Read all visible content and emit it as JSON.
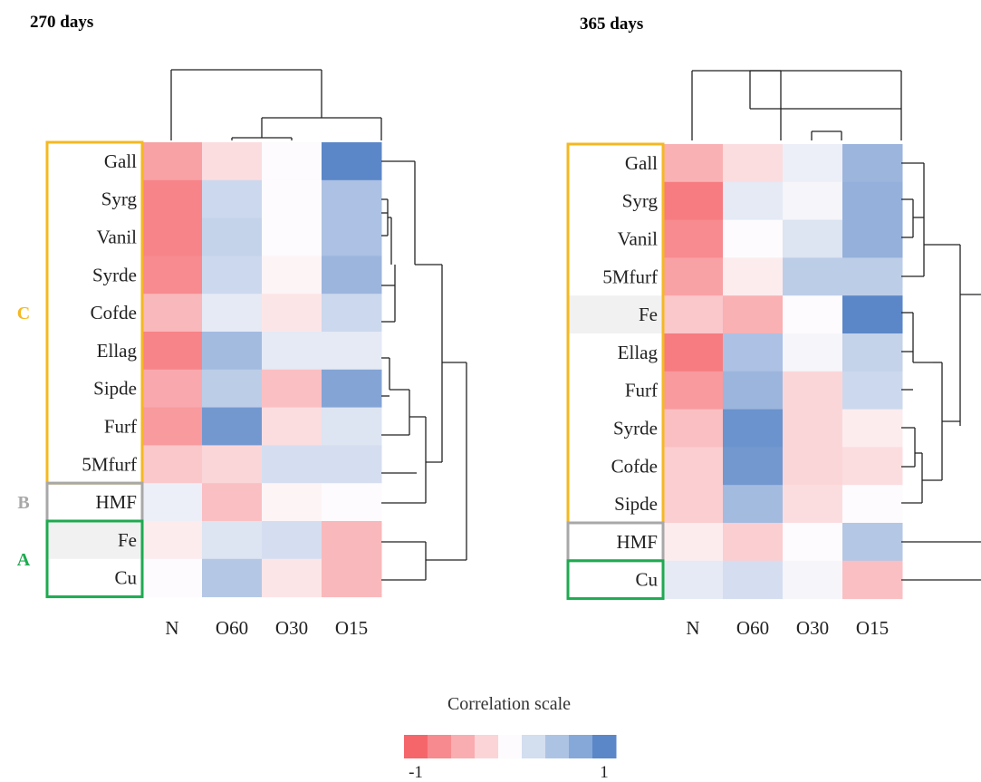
{
  "chart_data": [
    {
      "type": "heatmap",
      "title": "270 days",
      "columns": [
        "N",
        "O60",
        "O30",
        "O15"
      ],
      "rows": [
        "Gall",
        "Syrg",
        "Vanil",
        "Syrde",
        "Cofde",
        "Ellag",
        "Sipde",
        "Furf",
        "5Mfurf",
        "HMF",
        "Fe",
        "Cu"
      ],
      "values": [
        [
          -0.6,
          -0.2,
          0.0,
          1.0
        ],
        [
          -0.8,
          0.3,
          0.0,
          0.5
        ],
        [
          -0.8,
          0.35,
          0.0,
          0.5
        ],
        [
          -0.75,
          0.3,
          -0.05,
          0.6
        ],
        [
          -0.45,
          0.15,
          -0.15,
          0.3
        ],
        [
          -0.8,
          0.55,
          0.15,
          0.15
        ],
        [
          -0.55,
          0.4,
          -0.4,
          0.75
        ],
        [
          -0.65,
          0.85,
          -0.2,
          0.2
        ],
        [
          -0.35,
          -0.25,
          0.25,
          0.25
        ],
        [
          0.1,
          -0.4,
          -0.05,
          0.0
        ],
        [
          -0.1,
          0.2,
          0.25,
          -0.45
        ],
        [
          0.0,
          0.45,
          -0.15,
          -0.45
        ]
      ],
      "groups": [
        {
          "label": "C",
          "color": "#f5b820",
          "rows": [
            "Gall",
            "Syrg",
            "Vanil",
            "Syrde",
            "Cofde",
            "Ellag",
            "Sipde",
            "Furf",
            "5Mfurf"
          ]
        },
        {
          "label": "B",
          "color": "#a8a8a8",
          "rows": [
            "HMF"
          ]
        },
        {
          "label": "A",
          "color": "#1eaa50",
          "rows": [
            "Fe",
            "Cu"
          ]
        }
      ],
      "highlighted_rows": [
        "Fe"
      ]
    },
    {
      "type": "heatmap",
      "title": "365 days",
      "columns": [
        "N",
        "O60",
        "O30",
        "O15"
      ],
      "rows": [
        "Gall",
        "Syrg",
        "Vanil",
        "5Mfurf",
        "Fe",
        "Ellag",
        "Furf",
        "Syrde",
        "Cofde",
        "Sipde",
        "HMF",
        "Cu"
      ],
      "values": [
        [
          -0.5,
          -0.2,
          0.1,
          0.6
        ],
        [
          -0.85,
          0.15,
          0.05,
          0.65
        ],
        [
          -0.75,
          0.0,
          0.2,
          0.65
        ],
        [
          -0.6,
          -0.1,
          0.4,
          0.4
        ],
        [
          -0.35,
          -0.5,
          0.0,
          1.0
        ],
        [
          -0.85,
          0.5,
          0.05,
          0.35
        ],
        [
          -0.65,
          0.6,
          -0.25,
          0.3
        ],
        [
          -0.4,
          0.9,
          -0.25,
          -0.1
        ],
        [
          -0.3,
          0.85,
          -0.25,
          -0.2
        ],
        [
          -0.3,
          0.55,
          -0.2,
          0.0
        ],
        [
          -0.1,
          -0.3,
          0.0,
          0.45
        ],
        [
          0.15,
          0.25,
          0.05,
          -0.4
        ]
      ],
      "groups": [
        {
          "label": "",
          "color": "#f5b820",
          "rows": [
            "Gall",
            "Syrg",
            "Vanil",
            "5Mfurf",
            "Fe",
            "Ellag",
            "Furf",
            "Syrde",
            "Cofde",
            "Sipde"
          ]
        },
        {
          "label": "",
          "color": "#a8a8a8",
          "rows": [
            "HMF"
          ]
        },
        {
          "label": "",
          "color": "#1eaa50",
          "rows": [
            "Cu"
          ]
        }
      ],
      "highlighted_rows": [
        "Fe"
      ]
    }
  ],
  "legend": {
    "title": "Correlation scale",
    "min_label": "-1",
    "max_label": "1",
    "colors": [
      "#f5666b",
      "#f78a8e",
      "#f9adb0",
      "#fbd4d8",
      "#fdfbfd",
      "#d3deef",
      "#adc3e4",
      "#86a8d8",
      "#5b87c8"
    ]
  }
}
